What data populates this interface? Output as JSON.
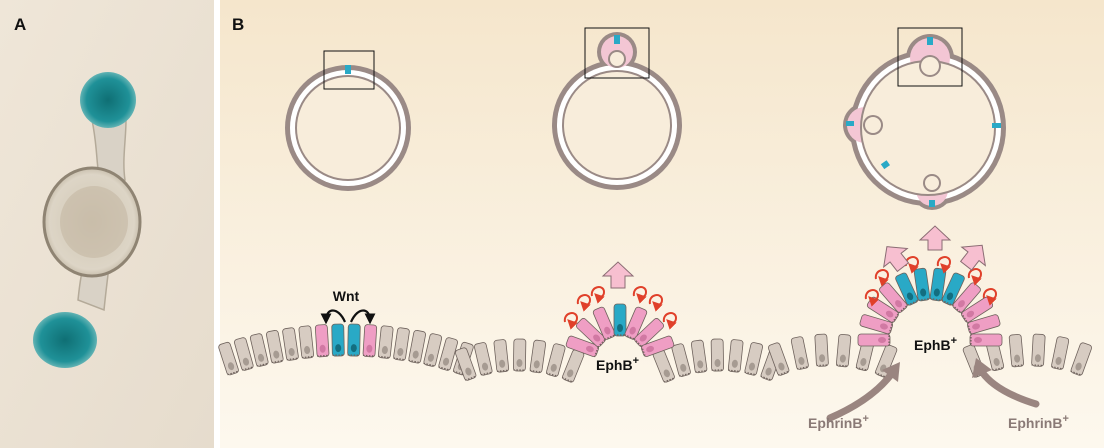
{
  "panels": {
    "a": {
      "label": "A"
    },
    "b": {
      "label": "B"
    }
  },
  "labels": {
    "wnt": "Wnt",
    "ephb": "EphB",
    "ephb_sup": "+",
    "ephrinb": "EphrinB",
    "ephrinb_sup": "+"
  },
  "colors": {
    "panel_bg_top": "#f6ead4",
    "panel_bg_bottom": "#fdf7ea",
    "ring_outline": "#9a8a86",
    "ring_fill": "#ffffff",
    "crypt_pink": "#f3c6d4",
    "cell_gray": "#d7ccc2",
    "cell_pink": "#ef9ec4",
    "cell_cyan": "#29a9c6",
    "cell_dark": "#0e5f6e",
    "ephb_arrow_red": "#e0402a",
    "growth_arrow_pink": "#f7bfd0",
    "ephrinb_arrow": "#9a8580",
    "organoid_stain": "#1c8a8e"
  }
}
